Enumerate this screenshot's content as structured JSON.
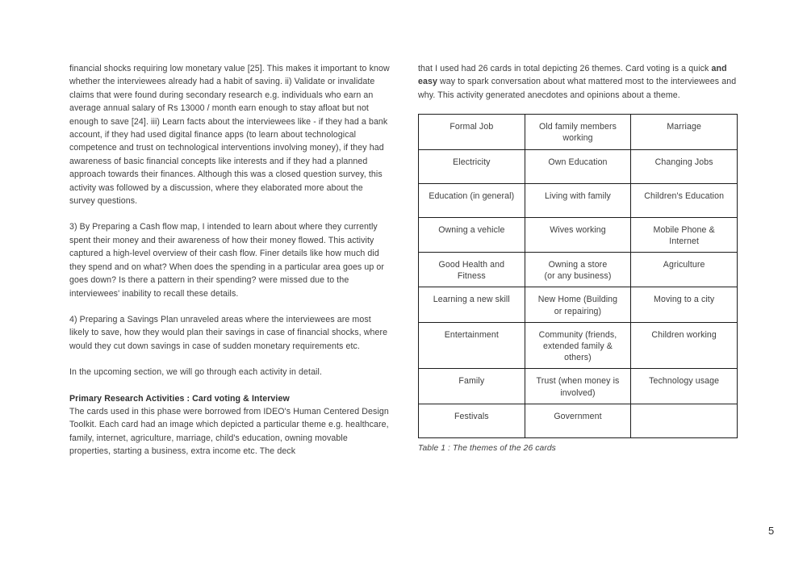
{
  "left_column": {
    "p1": "financial shocks requiring low monetary value [25]. This makes it important to know whether the interviewees already had a habit of saving. ii) Validate or invalidate claims that were found during secondary research e.g. individuals who earn an average annual salary of Rs 13000 / month earn enough to stay afloat but not enough to save [24]. iii) Learn facts about the interviewees like - if they had a bank account, if they had used digital finance apps (to learn about technological competence and trust on technological interventions involving money), if they had awareness of basic financial concepts like interests and if they had a planned approach towards their finances. Although this was a closed question survey, this activity was followed by a discussion, where they elaborated more about the survey questions.",
    "p2": "3) By Preparing a Cash flow map, I intended to learn about where they currently spent their money and their awareness of how their money flowed. This activity captured a high-level overview of their cash flow. Finer details like how much did they spend and on what? When does the spending in a particular area goes up or goes down? Is there a pattern in their spending? were missed due to the interviewees' inability to recall these details.",
    "p3": "4) Preparing a Savings Plan unraveled areas where the interviewees are most likely to save, how they would plan their savings in case of financial shocks, where would they cut down savings in case of sudden monetary requirements etc.",
    "p4": "In the upcoming section, we will go through each activity in detail.",
    "heading": "Primary Research Activities : Card voting & Interview",
    "p5": "The cards used in this phase were borrowed from IDEO's Human Centered Design Toolkit. Each card had an image which depicted a particular theme e.g. healthcare, family, internet, agriculture, marriage, child's education, owning movable properties, starting a business, extra income etc. The deck"
  },
  "right_column": {
    "intro": {
      "before_bold": "that I used had 26 cards in total depicting 26 themes. Card voting is a quick ",
      "bold": "and easy",
      "after_bold": " way to spark conversation about what mattered most to the interviewees and why. This activity generated anecdotes and opinions about a theme."
    },
    "table": {
      "caption": "Table 1 : The themes of the 26 cards",
      "rows": [
        {
          "cells": [
            "Formal Job",
            "Old family members\nworking",
            "Marriage"
          ]
        },
        {
          "cells": [
            "Electricity",
            "Own Education",
            "Changing Jobs"
          ]
        },
        {
          "cells": [
            "Education (in general)",
            "Living with family",
            "Children's Education"
          ]
        },
        {
          "cells": [
            "Owning a vehicle",
            "Wives working",
            "Mobile Phone &\nInternet"
          ]
        },
        {
          "cells": [
            "Good Health and\nFitness",
            "Owning a store\n(or any business)",
            "Agriculture"
          ]
        },
        {
          "cells": [
            "Learning a new skill",
            "New Home (Building\nor repairing)",
            "Moving to a city"
          ]
        },
        {
          "cells": [
            "Entertainment",
            "Community (friends,\nextended family &\nothers)",
            "Children working"
          ]
        },
        {
          "cells": [
            "Family",
            "Trust (when money is\ninvolved)",
            "Technology usage"
          ]
        },
        {
          "cells": [
            "Festivals",
            "Government",
            ""
          ]
        }
      ]
    }
  },
  "page": {
    "number": "5"
  }
}
